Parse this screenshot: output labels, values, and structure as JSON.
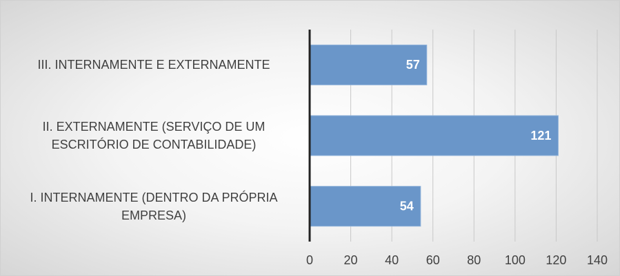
{
  "chart_data": {
    "type": "bar",
    "orientation": "horizontal",
    "categories": [
      "III. INTERNAMENTE E EXTERNAMENTE",
      "II. EXTERNAMENTE (SERVIÇO DE UM ESCRITÓRIO DE CONTABILIDADE)",
      "I. INTERNAMENTE (DENTRO DA PRÓPRIA EMPRESA)"
    ],
    "values": [
      57,
      121,
      54
    ],
    "color": "#6a96c9",
    "xlim": [
      0,
      140
    ],
    "xticks": [
      0,
      20,
      40,
      60,
      80,
      100,
      120,
      140
    ],
    "grid": true
  }
}
